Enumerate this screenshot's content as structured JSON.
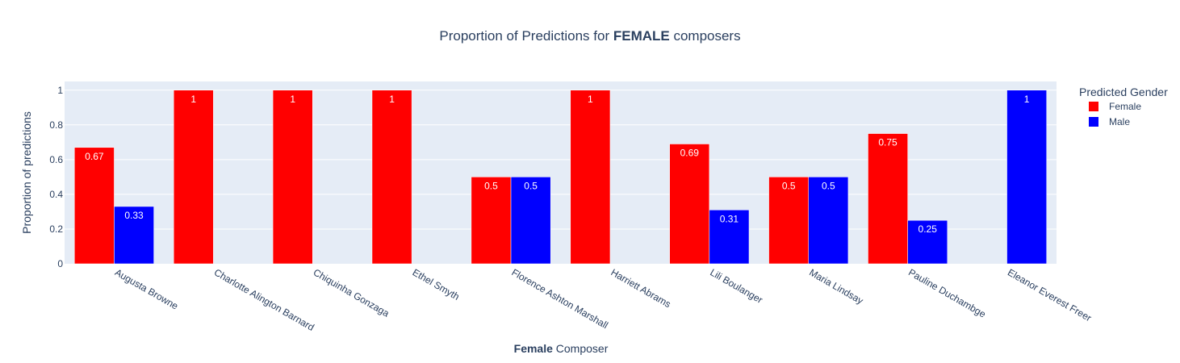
{
  "chart_data": {
    "type": "bar",
    "title_prefix": "Proportion of Predictions for ",
    "title_bold": "FEMALE",
    "title_suffix": " composers",
    "xlabel_bold": "Female",
    "xlabel_rest": " Composer",
    "ylabel": "Proportion of predictions",
    "ylim": [
      0,
      1.05
    ],
    "yticks": [
      "0",
      "0.2",
      "0.4",
      "0.6",
      "0.8",
      "1"
    ],
    "ytick_values": [
      0,
      0.2,
      0.4,
      0.6,
      0.8,
      1
    ],
    "grid": true,
    "legend_title": "Predicted Gender",
    "legend_placement": "right",
    "categories": [
      "Augusta Browne",
      "Charlotte Alington Barnard",
      "Chiquinha Gonzaga",
      "Ethel Smyth",
      "Florence Ashton Marshall",
      "Harriett Abrams",
      "Lili Boulanger",
      "Maria Lindsay",
      "Pauline Duchambge",
      "Eleanor Everest Freer"
    ],
    "series": [
      {
        "name": "Female",
        "color": "#ff0000",
        "values": [
          0.67,
          1,
          1,
          1,
          0.5,
          1,
          0.69,
          0.5,
          0.75,
          null
        ],
        "labels": [
          "0.67",
          "1",
          "1",
          "1",
          "0.5",
          "1",
          "0.69",
          "0.5",
          "0.75",
          null
        ]
      },
      {
        "name": "Male",
        "color": "#0000ff",
        "values": [
          0.33,
          null,
          null,
          null,
          0.5,
          null,
          0.31,
          0.5,
          0.25,
          1
        ],
        "labels": [
          "0.33",
          null,
          null,
          null,
          "0.5",
          null,
          "0.31",
          "0.5",
          "0.25",
          "1"
        ]
      }
    ],
    "plot_bg": "#e5ecf6",
    "text_color": "#2a3f5f"
  }
}
